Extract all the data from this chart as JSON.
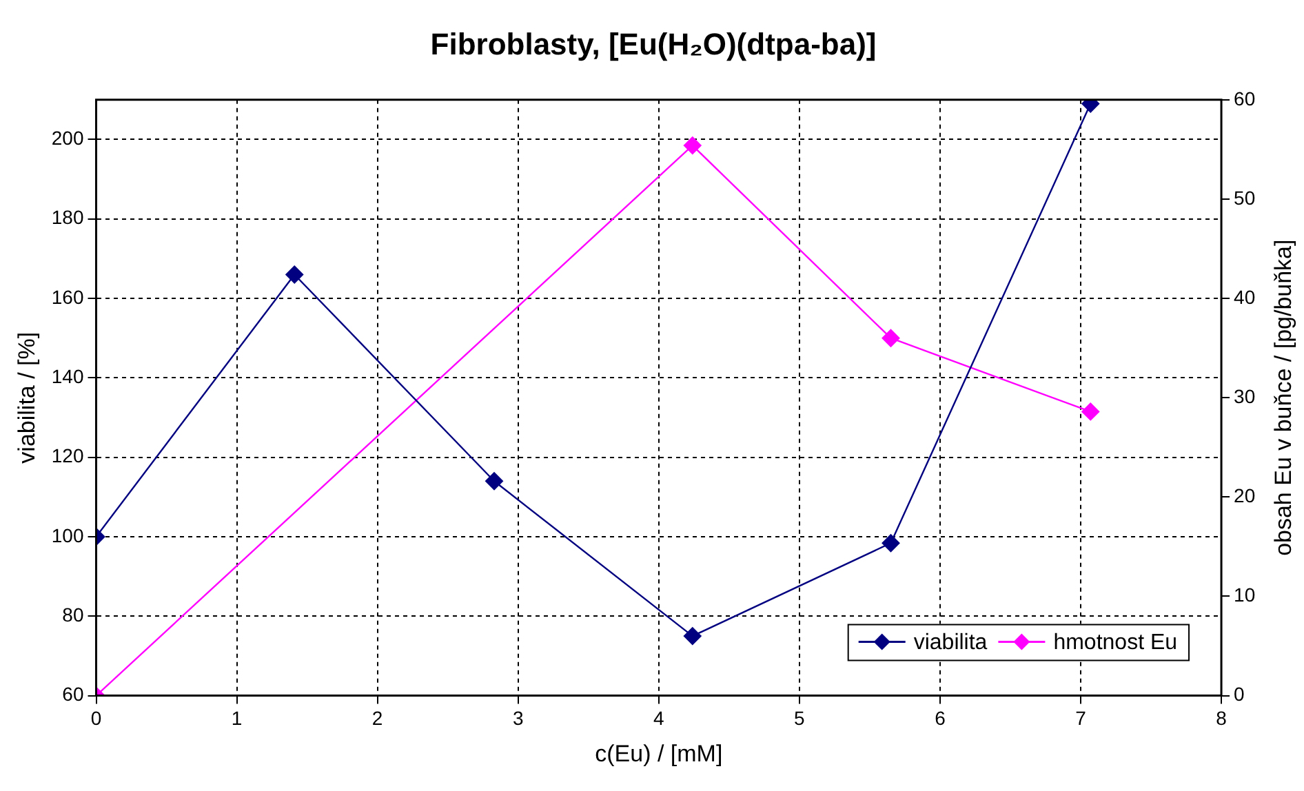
{
  "chart_data": {
    "type": "line",
    "title": "Fibroblasty, [Eu(H₂O)(dtpa-ba)]",
    "xlabel": "c(Eu) / [mM]",
    "ylabel": "viabilita / [%]",
    "y2label": "obsah Eu v buňce / [pg/buňka]",
    "x": [
      0,
      1.41,
      2.83,
      4.24,
      5.65,
      7.07
    ],
    "series": [
      {
        "name": "viabilita",
        "color": "#000080",
        "values": [
          100,
          166,
          114,
          75,
          98.4,
          209
        ]
      },
      {
        "name": "hmotnost Eu",
        "color": "#ff00ff",
        "axis": "y2",
        "values": [
          0,
          null,
          null,
          55.4,
          36,
          28.6
        ]
      }
    ],
    "xlim": [
      0,
      8
    ],
    "xticks": [
      0,
      1,
      2,
      3,
      4,
      5,
      6,
      7,
      8
    ],
    "ylim": [
      60,
      210
    ],
    "yticks": [
      60,
      80,
      100,
      120,
      140,
      160,
      180,
      200
    ],
    "y2lim": [
      0,
      60
    ],
    "y2ticks": [
      0,
      10,
      20,
      30,
      40,
      50,
      60
    ],
    "grid": true,
    "legend": "bottom right",
    "marker": "diamond",
    "line_style": "solid"
  }
}
